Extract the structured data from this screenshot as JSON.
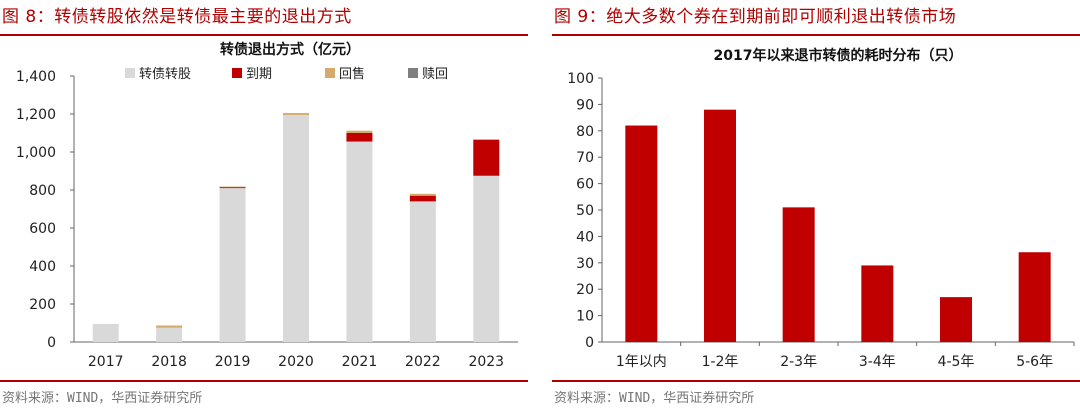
{
  "left": {
    "figure_title": "图 8：转债转股依然是转债最主要的退出方式",
    "source": "资料来源：WIND，华西证券研究所",
    "colors": {
      "转债转股": "#d9d9d9",
      "到期": "#c00000",
      "回售": "#d6a96c",
      "赎回": "#7f7f7f"
    },
    "chart_data": {
      "type": "bar",
      "stacked": true,
      "title": "转债退出方式（亿元）",
      "categories": [
        "2017",
        "2018",
        "2019",
        "2020",
        "2021",
        "2022",
        "2023"
      ],
      "ylim": [
        0,
        1400
      ],
      "yticks": [
        0,
        200,
        400,
        600,
        800,
        1000,
        1200,
        1400
      ],
      "ytick_labels": [
        "0",
        "200",
        "400",
        "600",
        "800",
        "1,000",
        "1,200",
        "1,400"
      ],
      "legend_position": "top",
      "series": [
        {
          "name": "转债转股",
          "values": [
            95,
            75,
            810,
            1195,
            1055,
            740,
            875
          ]
        },
        {
          "name": "到期",
          "values": [
            0,
            0,
            5,
            0,
            45,
            30,
            190
          ]
        },
        {
          "name": "回售",
          "values": [
            0,
            12,
            3,
            10,
            12,
            10,
            0
          ]
        },
        {
          "name": "赎回",
          "values": [
            0,
            0,
            0,
            0,
            0,
            0,
            0
          ]
        }
      ]
    }
  },
  "right": {
    "figure_title": "图 9：绝大多数个券在到期前即可顺利退出转债市场",
    "source": "资料来源：WIND，华西证券研究所",
    "colors": {
      "bar": "#c00000"
    },
    "chart_data": {
      "type": "bar",
      "title": "2017年以来退市转债的耗时分布（只）",
      "categories": [
        "1年以内",
        "1-2年",
        "2-3年",
        "3-4年",
        "4-5年",
        "5-6年"
      ],
      "values": [
        82,
        88,
        51,
        29,
        17,
        34
      ],
      "ylim": [
        0,
        100
      ],
      "yticks": [
        0,
        10,
        20,
        30,
        40,
        50,
        60,
        70,
        80,
        90,
        100
      ]
    }
  }
}
